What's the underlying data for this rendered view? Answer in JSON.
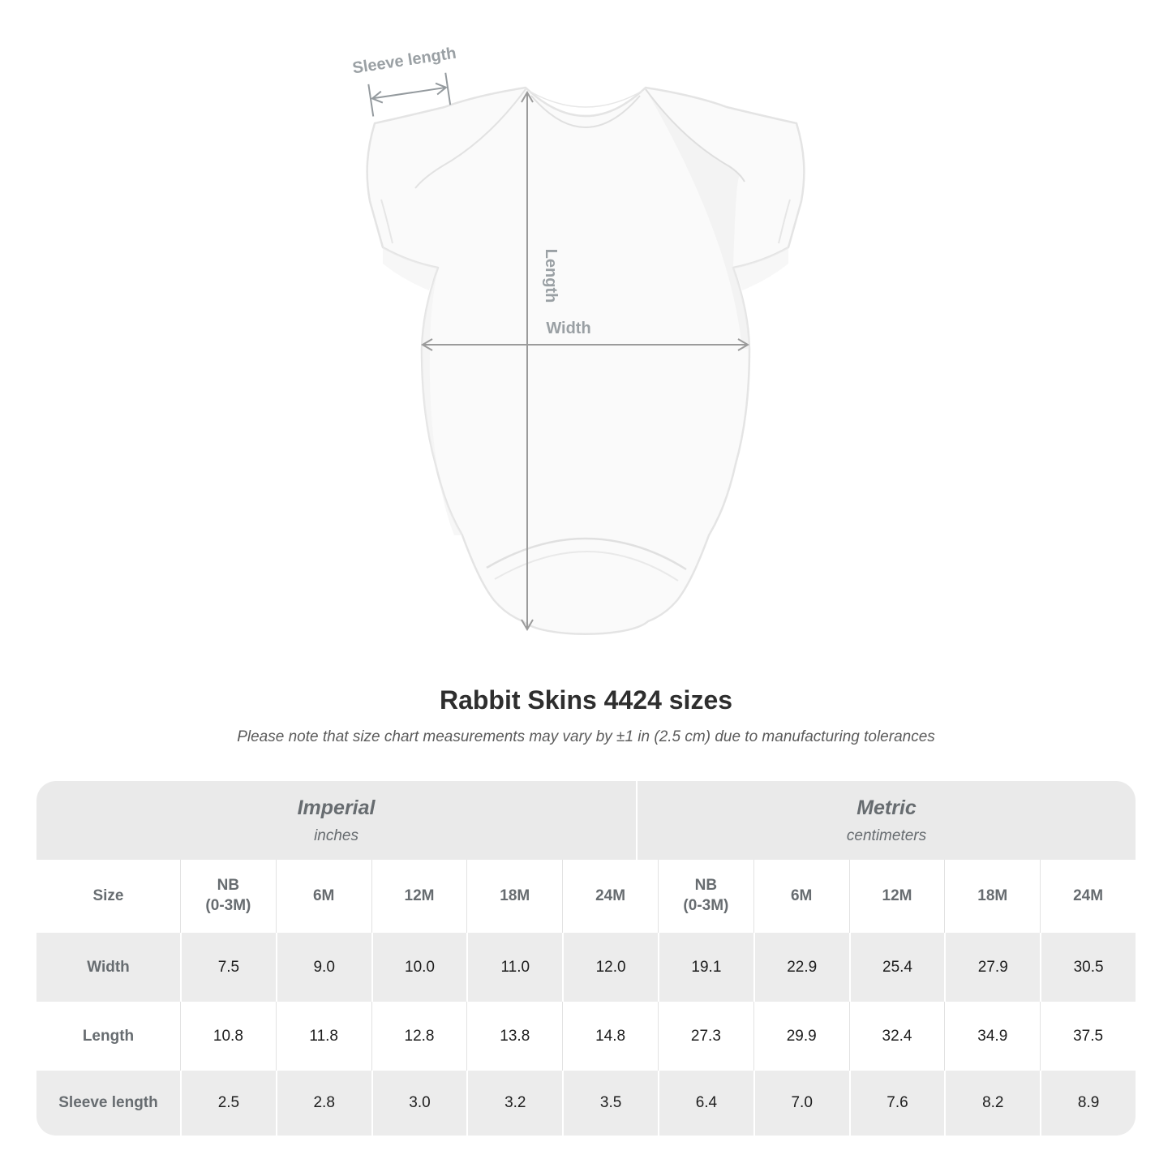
{
  "page": {
    "title": "Rabbit Skins 4424 sizes",
    "subtitle": "Please note that size chart measurements may vary by ±1 in (2.5 cm) due to manufacturing tolerances"
  },
  "diagram": {
    "product": "infant-bodysuit",
    "labels": {
      "sleeve_length": "Sleeve length",
      "length": "Length",
      "width": "Width"
    }
  },
  "chart_data": {
    "type": "table",
    "title": "Rabbit Skins 4424 sizes",
    "unit_groups": [
      {
        "label": "Imperial",
        "units": "inches"
      },
      {
        "label": "Metric",
        "units": "centimeters"
      }
    ],
    "corner_header": "Size",
    "size_columns": [
      "NB (0-3M)",
      "6M",
      "12M",
      "18M",
      "24M",
      "NB (0-3M)",
      "6M",
      "12M",
      "18M",
      "24M"
    ],
    "rows": [
      {
        "label": "Width",
        "values": [
          "7.5",
          "9.0",
          "10.0",
          "11.0",
          "12.0",
          "19.1",
          "22.9",
          "25.4",
          "27.9",
          "30.5"
        ]
      },
      {
        "label": "Length",
        "values": [
          "10.8",
          "11.8",
          "12.8",
          "13.8",
          "14.8",
          "27.3",
          "29.9",
          "32.4",
          "34.9",
          "37.5"
        ]
      },
      {
        "label": "Sleeve length",
        "values": [
          "2.5",
          "2.8",
          "3.0",
          "3.2",
          "3.5",
          "6.4",
          "7.0",
          "7.6",
          "8.2",
          "8.9"
        ]
      }
    ]
  },
  "colors": {
    "table_band_bg": "#eaeaea",
    "table_alt_row_bg": "#ececec",
    "header_text": "#676c70",
    "value_text": "#1d1d1d",
    "title_text": "#2e2e2e",
    "annotation_text": "#9aa0a4",
    "annotation_arrow": "#949a9e",
    "garment_fill": "#fafafa",
    "garment_stroke": "#e4e4e4"
  }
}
